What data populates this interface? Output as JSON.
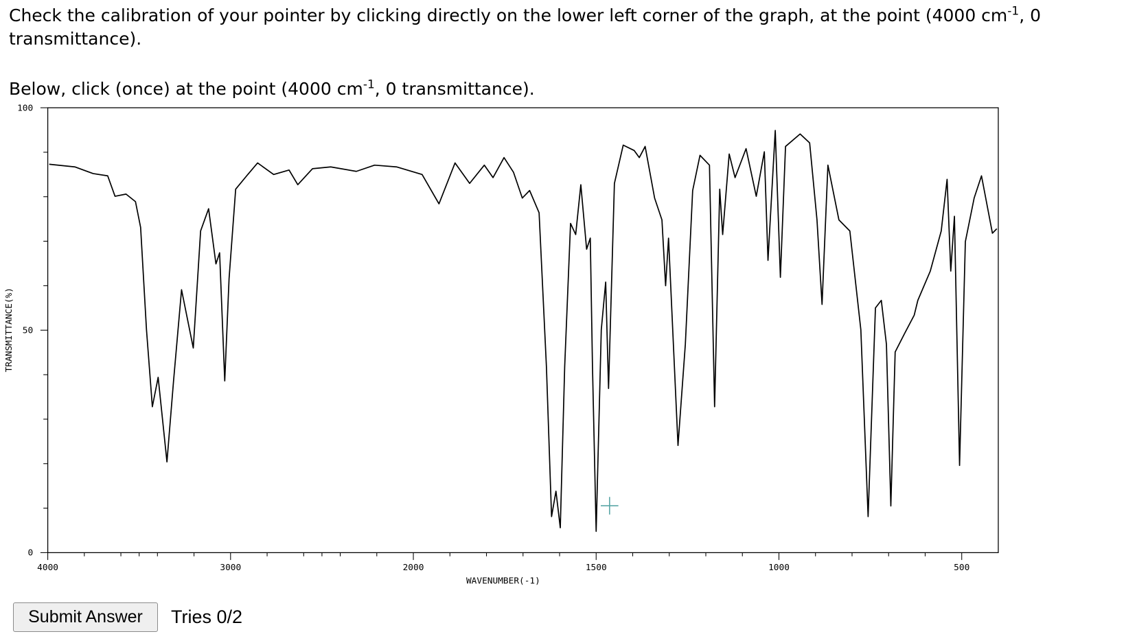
{
  "prompt": {
    "before": "Check the calibration of your pointer by clicking directly on the lower left corner of the graph, at the point (4000 cm",
    "sup": "-1",
    "after": ", 0 transmittance)."
  },
  "instruction": {
    "before": "Below, click (once) at the point (4000 cm",
    "sup": "-1",
    "after": ", 0 transmittance)."
  },
  "chart_data": {
    "type": "line",
    "x_label": "WAVENUMBER(-1)",
    "y_label": "TRANSMITTANCE(%)",
    "color": "#000000",
    "xlim": [
      4000,
      400
    ],
    "x_scale_break": 2000,
    "ylim": [
      0,
      100
    ],
    "xticks": [
      4000,
      3000,
      2000,
      1500,
      1000,
      500
    ],
    "xminor": [
      3800,
      3600,
      3500,
      3400,
      3200,
      2800,
      2600,
      2500,
      2400,
      2200,
      1900,
      1800,
      1700,
      1600,
      1400,
      1300,
      1200,
      1100,
      900,
      800,
      700,
      600
    ],
    "yticks": [
      0,
      50,
      100
    ],
    "yminor": [
      10,
      20,
      30,
      40,
      60,
      70,
      80,
      90
    ],
    "x": [
      3992,
      3852,
      3752,
      3672,
      3632,
      3572,
      3520,
      3492,
      3460,
      3428,
      3396,
      3348,
      3312,
      3268,
      3204,
      3164,
      3120,
      3080,
      3060,
      3032,
      3008,
      2972,
      2912,
      2852,
      2764,
      2680,
      2632,
      2552,
      2452,
      2312,
      2212,
      2092,
      1976,
      1930,
      1886,
      1846,
      1806,
      1782,
      1752,
      1726,
      1702,
      1682,
      1656,
      1636,
      1622,
      1610,
      1598,
      1586,
      1570,
      1556,
      1542,
      1526,
      1516,
      1510,
      1500,
      1486,
      1474,
      1466,
      1450,
      1426,
      1396,
      1382,
      1366,
      1340,
      1320,
      1310,
      1302,
      1276,
      1256,
      1236,
      1216,
      1190,
      1176,
      1162,
      1154,
      1136,
      1120,
      1090,
      1062,
      1040,
      1030,
      1010,
      996,
      982,
      942,
      916,
      896,
      882,
      866,
      836,
      806,
      776,
      756,
      736,
      720,
      706,
      694,
      682,
      656,
      630,
      620,
      586,
      556,
      540,
      530,
      520,
      506,
      490,
      466,
      446,
      416,
      404
    ],
    "values": [
      87.3,
      86.7,
      85.2,
      84.7,
      80.1,
      80.6,
      78.9,
      73.1,
      50.1,
      32.8,
      39.4,
      20.4,
      38.6,
      59.1,
      46.0,
      72.3,
      77.3,
      64.9,
      67.4,
      38.6,
      61.6,
      81.7,
      84.7,
      87.6,
      85.0,
      86.0,
      82.7,
      86.3,
      86.7,
      85.7,
      87.1,
      86.7,
      85.0,
      78.4,
      87.6,
      83.0,
      87.1,
      84.3,
      88.8,
      85.5,
      79.7,
      81.4,
      76.4,
      41.8,
      8.1,
      13.8,
      5.6,
      41.8,
      74.0,
      71.5,
      82.7,
      68.2,
      70.7,
      41.8,
      4.8,
      50.1,
      60.8,
      36.9,
      83.0,
      91.6,
      90.4,
      88.8,
      91.3,
      79.7,
      74.8,
      60.0,
      70.7,
      24.1,
      46.8,
      81.4,
      89.3,
      87.1,
      32.8,
      81.7,
      71.5,
      89.6,
      84.3,
      90.8,
      80.1,
      90.1,
      65.7,
      94.9,
      61.9,
      91.3,
      94.1,
      92.1,
      74.8,
      55.8,
      87.1,
      74.8,
      72.3,
      50.1,
      8.1,
      55.0,
      56.7,
      46.8,
      10.5,
      45.1,
      49.3,
      53.4,
      56.7,
      63.3,
      72.3,
      83.9,
      63.3,
      75.6,
      19.6,
      69.9,
      79.7,
      84.7,
      71.8,
      72.8
    ]
  },
  "button": {
    "label": "Submit Answer"
  },
  "tries": "Tries 0/2"
}
